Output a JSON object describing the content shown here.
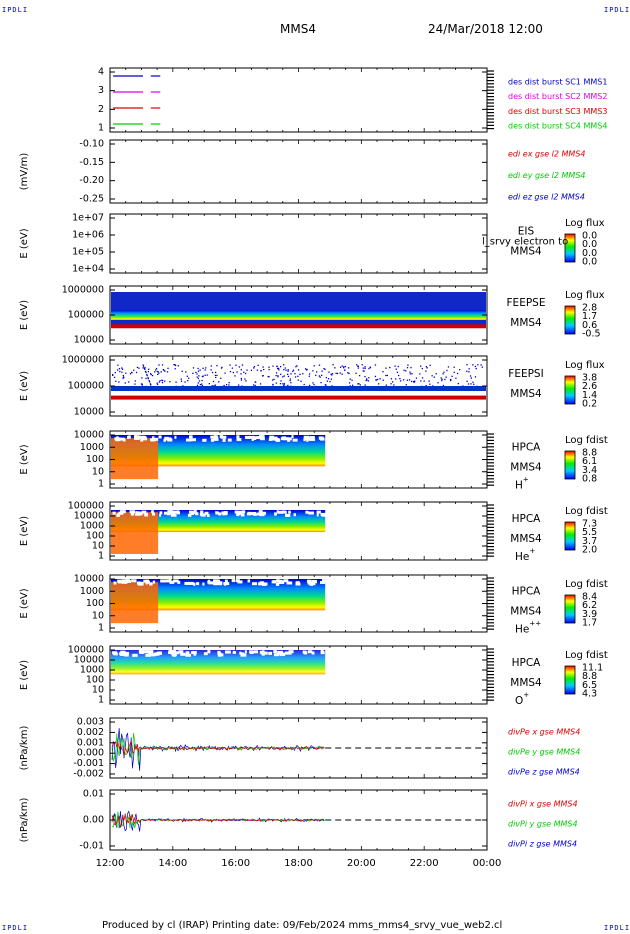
{
  "corners": {
    "tl": "IPDLI",
    "tr": "IPDLI",
    "bl": "IPDLI",
    "br": "IPDLI"
  },
  "header": {
    "title": "MMS4",
    "datetime": "24/Mar/2018 12:00"
  },
  "footer": {
    "text": "Produced by cl (IRAP)   Printing date: 09/Feb/2024   mms_mms4_srvy_vue_web2.cl"
  },
  "colors": {
    "red": "#dd0000",
    "green": "#00cc00",
    "blue": "#0000cc",
    "magenta": "#dd00dd",
    "dash": "#000000"
  },
  "chart_data": {
    "type": "multi-panel time series",
    "x_ticks": [
      "12:00",
      "14:00",
      "16:00",
      "18:00",
      "20:00",
      "22:00",
      "00:00"
    ],
    "x_range_hours": [
      12,
      24
    ],
    "panels": [
      {
        "id": "burst",
        "ylabel": "",
        "yticks": [
          "4",
          "3",
          "2",
          "1"
        ],
        "legend": [
          "des dist burst SC1 MMS1",
          "des dist burst SC2 MMS2",
          "des dist burst SC3 MMS3",
          "des dist burst SC4 MMS4"
        ],
        "legend_colors": [
          "#0000cc",
          "#dd00dd",
          "#dd0000",
          "#00cc00"
        ]
      },
      {
        "id": "edi",
        "ylabel": "(mV/m)",
        "yticks": [
          "-0.10",
          "-0.15",
          "-0.20",
          "-0.25"
        ],
        "legend": [
          "edi ex gse l2 MMS4",
          "edi ey gse l2 MMS4",
          "edi ez gse l2 MMS4"
        ],
        "legend_colors": [
          "#dd0000",
          "#00cc00",
          "#0000cc"
        ]
      },
      {
        "id": "eis",
        "ylabel": "E (eV)",
        "yticks": [
          "1e+07",
          "1e+06",
          "1e+05",
          "1e+04"
        ],
        "instrument": "EIS",
        "sc": "MMS4",
        "overlay": "l_srvy electron to",
        "cb_title": "Log flux",
        "cb_ticks": [
          "0.0",
          "0.0",
          "0.0",
          "0.0"
        ]
      },
      {
        "id": "feepse",
        "ylabel": "E (eV)",
        "yticks": [
          "1000000",
          "100000",
          "10000"
        ],
        "instrument": "FEEPSE",
        "sc": "MMS4",
        "cb_title": "Log flux",
        "cb_ticks": [
          "2.8",
          "1.7",
          "0.6",
          "-0.5"
        ]
      },
      {
        "id": "feepsi",
        "ylabel": "E (eV)",
        "yticks": [
          "1000000",
          "100000",
          "10000"
        ],
        "instrument": "FEEPSI",
        "sc": "MMS4",
        "cb_title": "Log flux",
        "cb_ticks": [
          "3.8",
          "2.6",
          "1.4",
          "0.2"
        ]
      },
      {
        "id": "hpca_h",
        "ylabel": "E (eV)",
        "yticks": [
          "10000",
          "1000",
          "100",
          "10",
          "1"
        ],
        "instrument": "HPCA",
        "sc": "MMS4",
        "species": "H",
        "sup": "+",
        "cb_title": "Log fdist",
        "cb_ticks": [
          "8.8",
          "6.1",
          "3.4",
          "0.8"
        ]
      },
      {
        "id": "hpca_he",
        "ylabel": "E (eV)",
        "yticks": [
          "100000",
          "10000",
          "1000",
          "100",
          "10",
          "1"
        ],
        "instrument": "HPCA",
        "sc": "MMS4",
        "species": "He",
        "sup": "+",
        "cb_title": "Log fdist",
        "cb_ticks": [
          "7.3",
          "5.5",
          "3.7",
          "2.0"
        ]
      },
      {
        "id": "hpca_hepp",
        "ylabel": "E (eV)",
        "yticks": [
          "10000",
          "1000",
          "100",
          "10",
          "1"
        ],
        "instrument": "HPCA",
        "sc": "MMS4",
        "species": "He",
        "sup": "++",
        "cb_title": "Log fdist",
        "cb_ticks": [
          "8.4",
          "6.2",
          "3.9",
          "1.7"
        ]
      },
      {
        "id": "hpca_o",
        "ylabel": "E (eV)",
        "yticks": [
          "100000",
          "10000",
          "1000",
          "100",
          "10",
          "1"
        ],
        "instrument": "HPCA",
        "sc": "MMS4",
        "species": "O",
        "sup": "+",
        "cb_title": "Log fdist",
        "cb_ticks": [
          "11.1",
          "8.8",
          "6.5",
          "4.3"
        ]
      },
      {
        "id": "divpe",
        "ylabel": "(nPa/km)",
        "yticks": [
          "0.003",
          "0.002",
          "0.001",
          "0.000",
          "-0.001",
          "-0.002"
        ],
        "legend": [
          "divPe x gse MMS4",
          "divPe y gse MMS4",
          "divPe z gse MMS4"
        ],
        "legend_colors": [
          "#dd0000",
          "#00cc00",
          "#0000cc"
        ]
      },
      {
        "id": "divpi",
        "ylabel": "(nPa/km)",
        "yticks": [
          "0.01",
          "0.00",
          "-0.01"
        ],
        "legend": [
          "divPi x gse MMS4",
          "divPi y gse MMS4",
          "divPi z gse MMS4"
        ],
        "legend_colors": [
          "#dd0000",
          "#00cc00",
          "#0000cc"
        ]
      }
    ]
  }
}
